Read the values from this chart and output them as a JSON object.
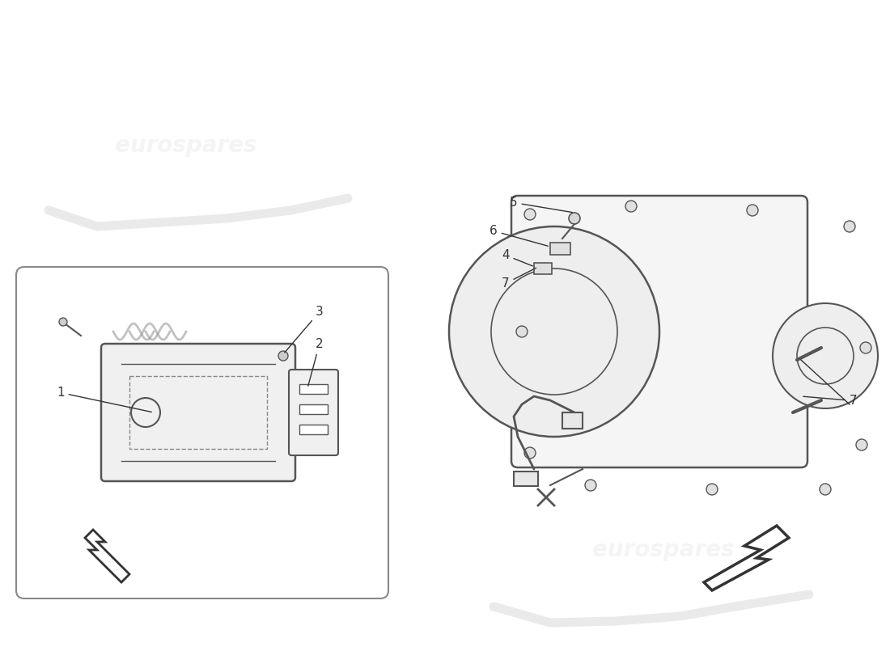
{
  "bg_color": "#ffffff",
  "watermark_color": "#d0d0d0",
  "watermark_text": "eurospares",
  "line_color": "#555555",
  "arrow_color": "#333333",
  "label_color": "#333333",
  "box_border_color": "#888888",
  "box_bg": "#f8f8f8",
  "fig_width": 11.0,
  "fig_height": 8.0,
  "parts": {
    "left_box": {
      "label": "1",
      "sublabels": [
        "2",
        "3"
      ]
    },
    "right_box": {
      "labels": [
        "4",
        "5",
        "6",
        "7"
      ]
    }
  }
}
